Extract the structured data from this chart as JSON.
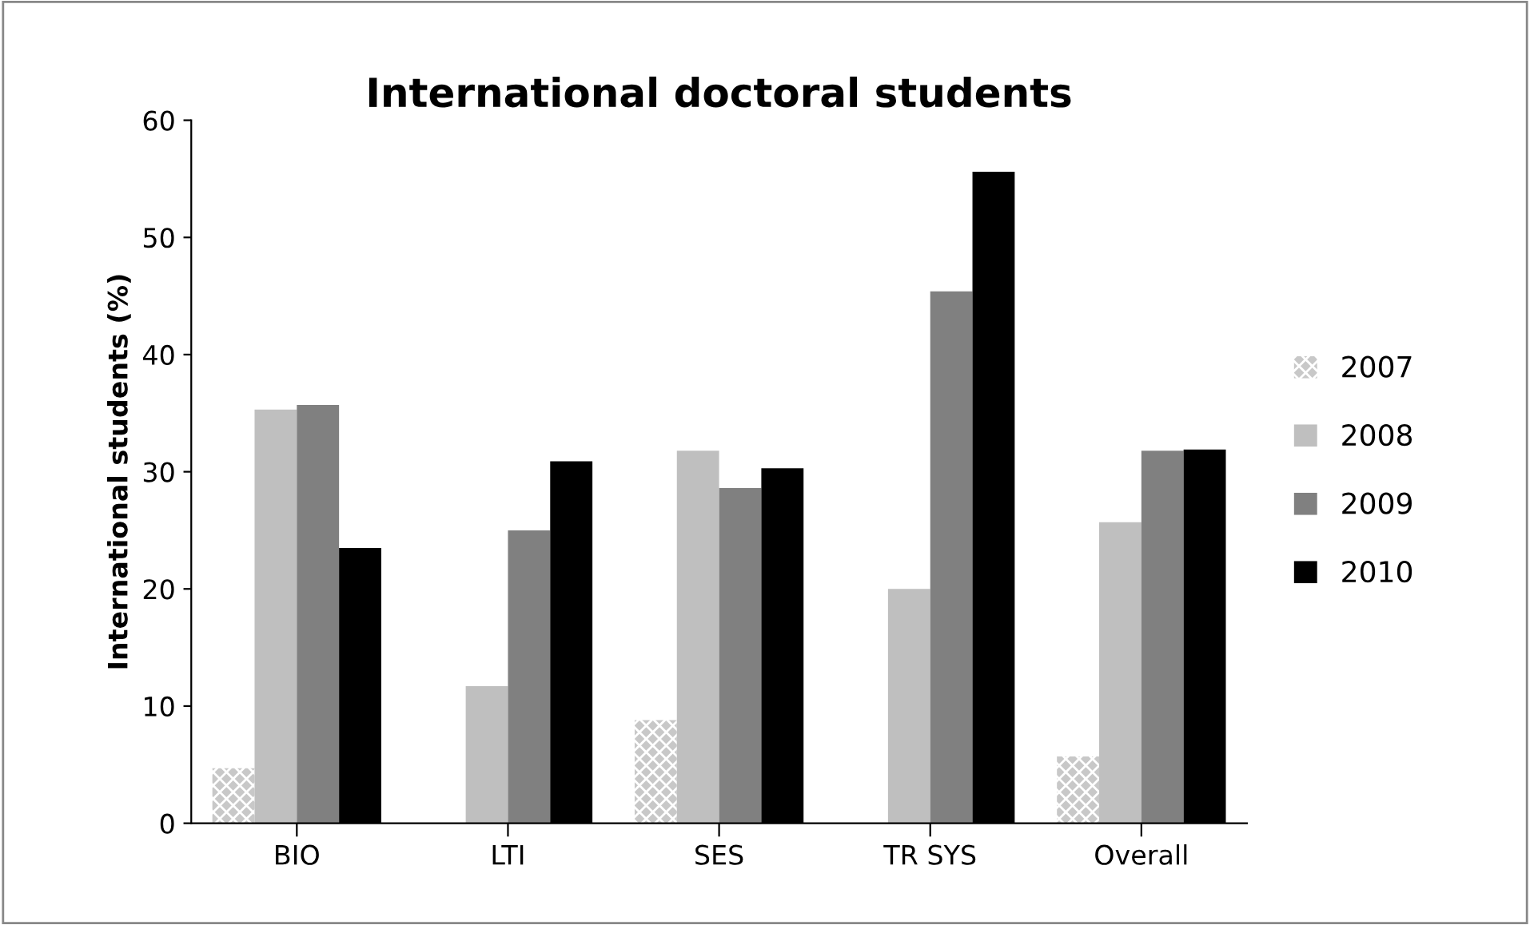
{
  "chart_data": {
    "type": "bar",
    "title": "International doctoral students",
    "ylabel": "International students (%)",
    "categories": [
      "BIO",
      "LTI",
      "SES",
      "TR SYS",
      "Overall"
    ],
    "series": [
      {
        "name": "2007",
        "color": "#c8c8c8",
        "values": [
          4.7,
          null,
          8.8,
          null,
          5.7
        ]
      },
      {
        "name": "2008",
        "color": "#bfbfbf",
        "values": [
          35.3,
          11.7,
          31.8,
          20.0,
          25.7
        ]
      },
      {
        "name": "2009",
        "color": "#808080",
        "values": [
          35.7,
          25.0,
          28.6,
          45.4,
          31.8
        ]
      },
      {
        "name": "2010",
        "color": "#000000",
        "values": [
          23.5,
          30.9,
          30.3,
          55.6,
          31.9
        ]
      }
    ],
    "ylim": [
      0,
      60
    ],
    "yticks": [
      0,
      10,
      20,
      30,
      40,
      50,
      60
    ],
    "grid": false,
    "legend": "right"
  }
}
